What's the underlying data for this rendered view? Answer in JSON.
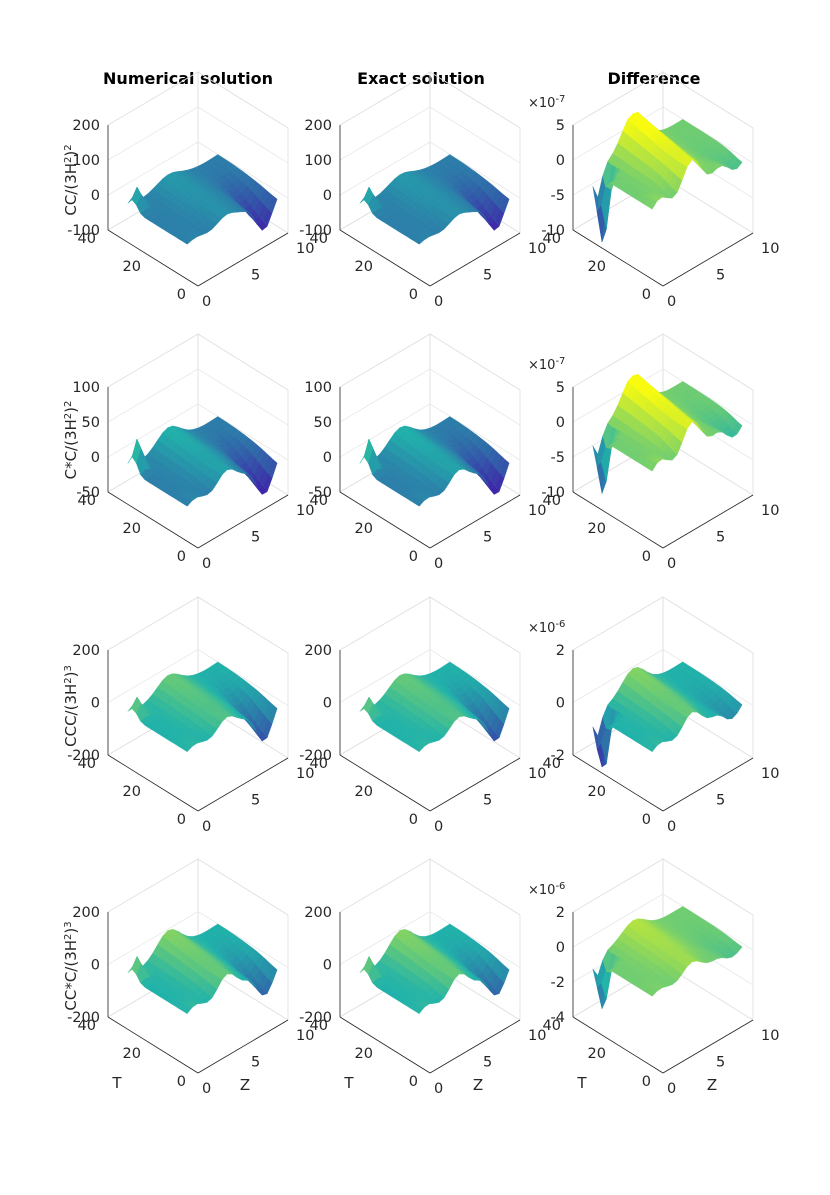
{
  "columns": [
    "Numerical solution",
    "Exact solution",
    "Difference"
  ],
  "row_ylabels": [
    {
      "base": "CC/(3H",
      "sup1": "2",
      "mid": ")",
      "sup2": "2"
    },
    {
      "base": "C*C/(3H",
      "sup1": "2",
      "mid": ")",
      "sup2": "2"
    },
    {
      "base": "CCC/(3H",
      "sup1": "2",
      "mid": ")",
      "sup2": "3"
    },
    {
      "base": "CC*C/(3H",
      "sup1": "2",
      "mid": ")",
      "sup2": "3"
    }
  ],
  "axis_labels": {
    "t": "T",
    "z": "Z"
  },
  "chart_data": [
    {
      "type": "surface",
      "row": 0,
      "col": 0,
      "title": "Numerical solution",
      "zlabel": "CC/(3H2)2",
      "t_ticks": [
        "0",
        "20",
        "40"
      ],
      "z_ticks": [
        "0",
        "5",
        "10"
      ],
      "value_ticks": [
        "-100",
        "0",
        "100",
        "200"
      ],
      "zlim": [
        -100,
        200
      ],
      "exponent": "",
      "features": {
        "spike": 60,
        "ridge": 30,
        "trough": -100
      }
    },
    {
      "type": "surface",
      "row": 0,
      "col": 1,
      "title": "Exact solution",
      "zlabel": "CC/(3H2)2",
      "t_ticks": [
        "0",
        "20",
        "40"
      ],
      "z_ticks": [
        "0",
        "5",
        "10"
      ],
      "value_ticks": [
        "-100",
        "0",
        "100",
        "200"
      ],
      "zlim": [
        -100,
        200
      ],
      "exponent": "",
      "features": {
        "spike": 60,
        "ridge": 30,
        "trough": -100
      }
    },
    {
      "type": "surface",
      "row": 0,
      "col": 2,
      "title": "Difference",
      "zlabel": "",
      "t_ticks": [
        "0",
        "20",
        "40"
      ],
      "z_ticks": [
        "0",
        "5",
        "10"
      ],
      "value_ticks": [
        "-10",
        "-5",
        "0",
        "5"
      ],
      "zlim": [
        -10,
        5
      ],
      "exponent": "-7",
      "features": {
        "spike": -11,
        "ridge": 6,
        "trough": -1
      }
    },
    {
      "type": "surface",
      "row": 1,
      "col": 0,
      "title": "Numerical solution",
      "zlabel": "C*C/(3H2)2",
      "t_ticks": [
        "0",
        "20",
        "40"
      ],
      "z_ticks": [
        "0",
        "5",
        "10"
      ],
      "value_ticks": [
        "-50",
        "0",
        "50",
        "100"
      ],
      "zlim": [
        -50,
        100
      ],
      "exponent": "",
      "features": {
        "spike": 45,
        "ridge": 30,
        "trough": -55
      }
    },
    {
      "type": "surface",
      "row": 1,
      "col": 1,
      "title": "Exact solution",
      "zlabel": "C*C/(3H2)2",
      "t_ticks": [
        "0",
        "20",
        "40"
      ],
      "z_ticks": [
        "0",
        "5",
        "10"
      ],
      "value_ticks": [
        "-50",
        "0",
        "50",
        "100"
      ],
      "zlim": [
        -50,
        100
      ],
      "exponent": "",
      "features": {
        "spike": 45,
        "ridge": 30,
        "trough": -55
      }
    },
    {
      "type": "surface",
      "row": 1,
      "col": 2,
      "title": "Difference",
      "zlabel": "",
      "t_ticks": [
        "0",
        "20",
        "40"
      ],
      "z_ticks": [
        "0",
        "5",
        "10"
      ],
      "value_ticks": [
        "-10",
        "-5",
        "0",
        "5"
      ],
      "zlim": [
        -10,
        5
      ],
      "exponent": "-7",
      "features": {
        "spike": -9,
        "ridge": 6,
        "trough": -2
      }
    },
    {
      "type": "surface",
      "row": 2,
      "col": 0,
      "title": "Numerical solution",
      "zlabel": "CCC/(3H2)3",
      "t_ticks": [
        "0",
        "20",
        "40"
      ],
      "z_ticks": [
        "0",
        "5",
        "10"
      ],
      "value_ticks": [
        "-200",
        "0",
        "200"
      ],
      "zlim": [
        -200,
        200
      ],
      "exponent": "",
      "features": {
        "spike": 70,
        "ridge": 70,
        "trough": -150
      }
    },
    {
      "type": "surface",
      "row": 2,
      "col": 1,
      "title": "Exact solution",
      "zlabel": "CCC/(3H2)3",
      "t_ticks": [
        "0",
        "20",
        "40"
      ],
      "z_ticks": [
        "0",
        "5",
        "10"
      ],
      "value_ticks": [
        "-200",
        "0",
        "200"
      ],
      "zlim": [
        -200,
        200
      ],
      "exponent": "",
      "features": {
        "spike": 70,
        "ridge": 70,
        "trough": -150
      }
    },
    {
      "type": "surface",
      "row": 2,
      "col": 2,
      "title": "Difference",
      "zlabel": "",
      "t_ticks": [
        "0",
        "20",
        "40"
      ],
      "z_ticks": [
        "0",
        "5",
        "10"
      ],
      "value_ticks": [
        "-2",
        "0",
        "2"
      ],
      "zlim": [
        -2,
        2
      ],
      "exponent": "-6",
      "features": {
        "spike": -2.5,
        "ridge": 1.0,
        "trough": -0.6
      }
    },
    {
      "type": "surface",
      "row": 3,
      "col": 0,
      "title": "Numerical solution",
      "zlabel": "CC*C/(3H2)3",
      "t_ticks": [
        "0",
        "20",
        "40"
      ],
      "z_ticks": [
        "0",
        "5",
        "10"
      ],
      "value_ticks": [
        "-200",
        "0",
        "200"
      ],
      "zlim": [
        -200,
        200
      ],
      "exponent": "",
      "features": {
        "spike": 80,
        "ridge": 100,
        "trough": -120
      }
    },
    {
      "type": "surface",
      "row": 3,
      "col": 1,
      "title": "Exact solution",
      "zlabel": "CC*C/(3H2)3",
      "t_ticks": [
        "0",
        "20",
        "40"
      ],
      "z_ticks": [
        "0",
        "5",
        "10"
      ],
      "value_ticks": [
        "-200",
        "0",
        "200"
      ],
      "zlim": [
        -200,
        200
      ],
      "exponent": "",
      "features": {
        "spike": 80,
        "ridge": 100,
        "trough": -120
      }
    },
    {
      "type": "surface",
      "row": 3,
      "col": 2,
      "title": "Difference",
      "zlabel": "",
      "t_ticks": [
        "0",
        "20",
        "40"
      ],
      "z_ticks": [
        "0",
        "5",
        "10"
      ],
      "value_ticks": [
        "-4",
        "-2",
        "0",
        "2"
      ],
      "zlim": [
        -4,
        2
      ],
      "exponent": "-6",
      "features": {
        "spike": -3,
        "ridge": 1.0,
        "trough": -0.5
      }
    }
  ],
  "colors": {
    "low": "#3e26a8",
    "mid": "#20b2aa",
    "high": "#f9fb0e",
    "grid": "#e0e0e0",
    "axis": "#262626"
  }
}
